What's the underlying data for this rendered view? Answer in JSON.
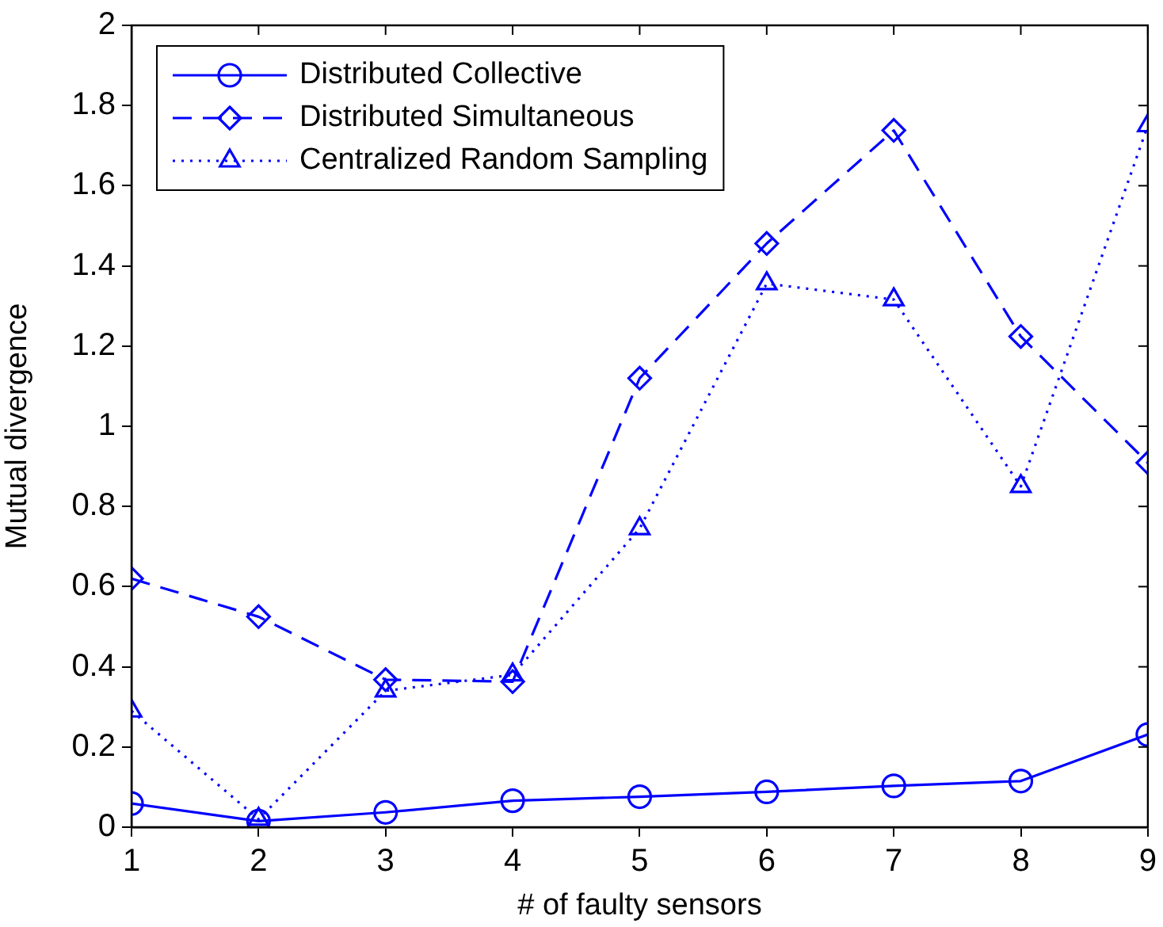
{
  "chart_data": {
    "type": "line",
    "xlabel": "# of faulty sensors",
    "ylabel": "Mutual divergence",
    "x": [
      1,
      2,
      3,
      4,
      5,
      6,
      7,
      8,
      9
    ],
    "xlim": [
      1,
      9
    ],
    "xticks": [
      1,
      2,
      3,
      4,
      5,
      6,
      7,
      8,
      9
    ],
    "ylim": [
      0,
      2
    ],
    "yticks": [
      0,
      0.2,
      0.4,
      0.6,
      0.8,
      1,
      1.2,
      1.4,
      1.6,
      1.8,
      2
    ],
    "grid": false,
    "legend": "top left",
    "series": [
      {
        "name": "Distributed Collective",
        "color": "#0000ff",
        "marker": "circle",
        "line_style": "solid",
        "values": [
          0.059,
          0.015,
          0.037,
          0.066,
          0.076,
          0.088,
          0.103,
          0.115,
          0.231
        ]
      },
      {
        "name": "Distributed Simultaneous",
        "color": "#0000ff",
        "marker": "diamond",
        "line_style": "dashed",
        "values": [
          0.62,
          0.525,
          0.368,
          0.363,
          1.12,
          1.456,
          1.738,
          1.224,
          0.909
        ]
      },
      {
        "name": "Centralized Random Sampling",
        "color": "#0000ff",
        "marker": "triangle",
        "line_style": "dotted",
        "values": [
          0.29,
          0.02,
          0.34,
          0.38,
          0.745,
          1.356,
          1.316,
          0.85,
          1.75
        ]
      }
    ]
  }
}
